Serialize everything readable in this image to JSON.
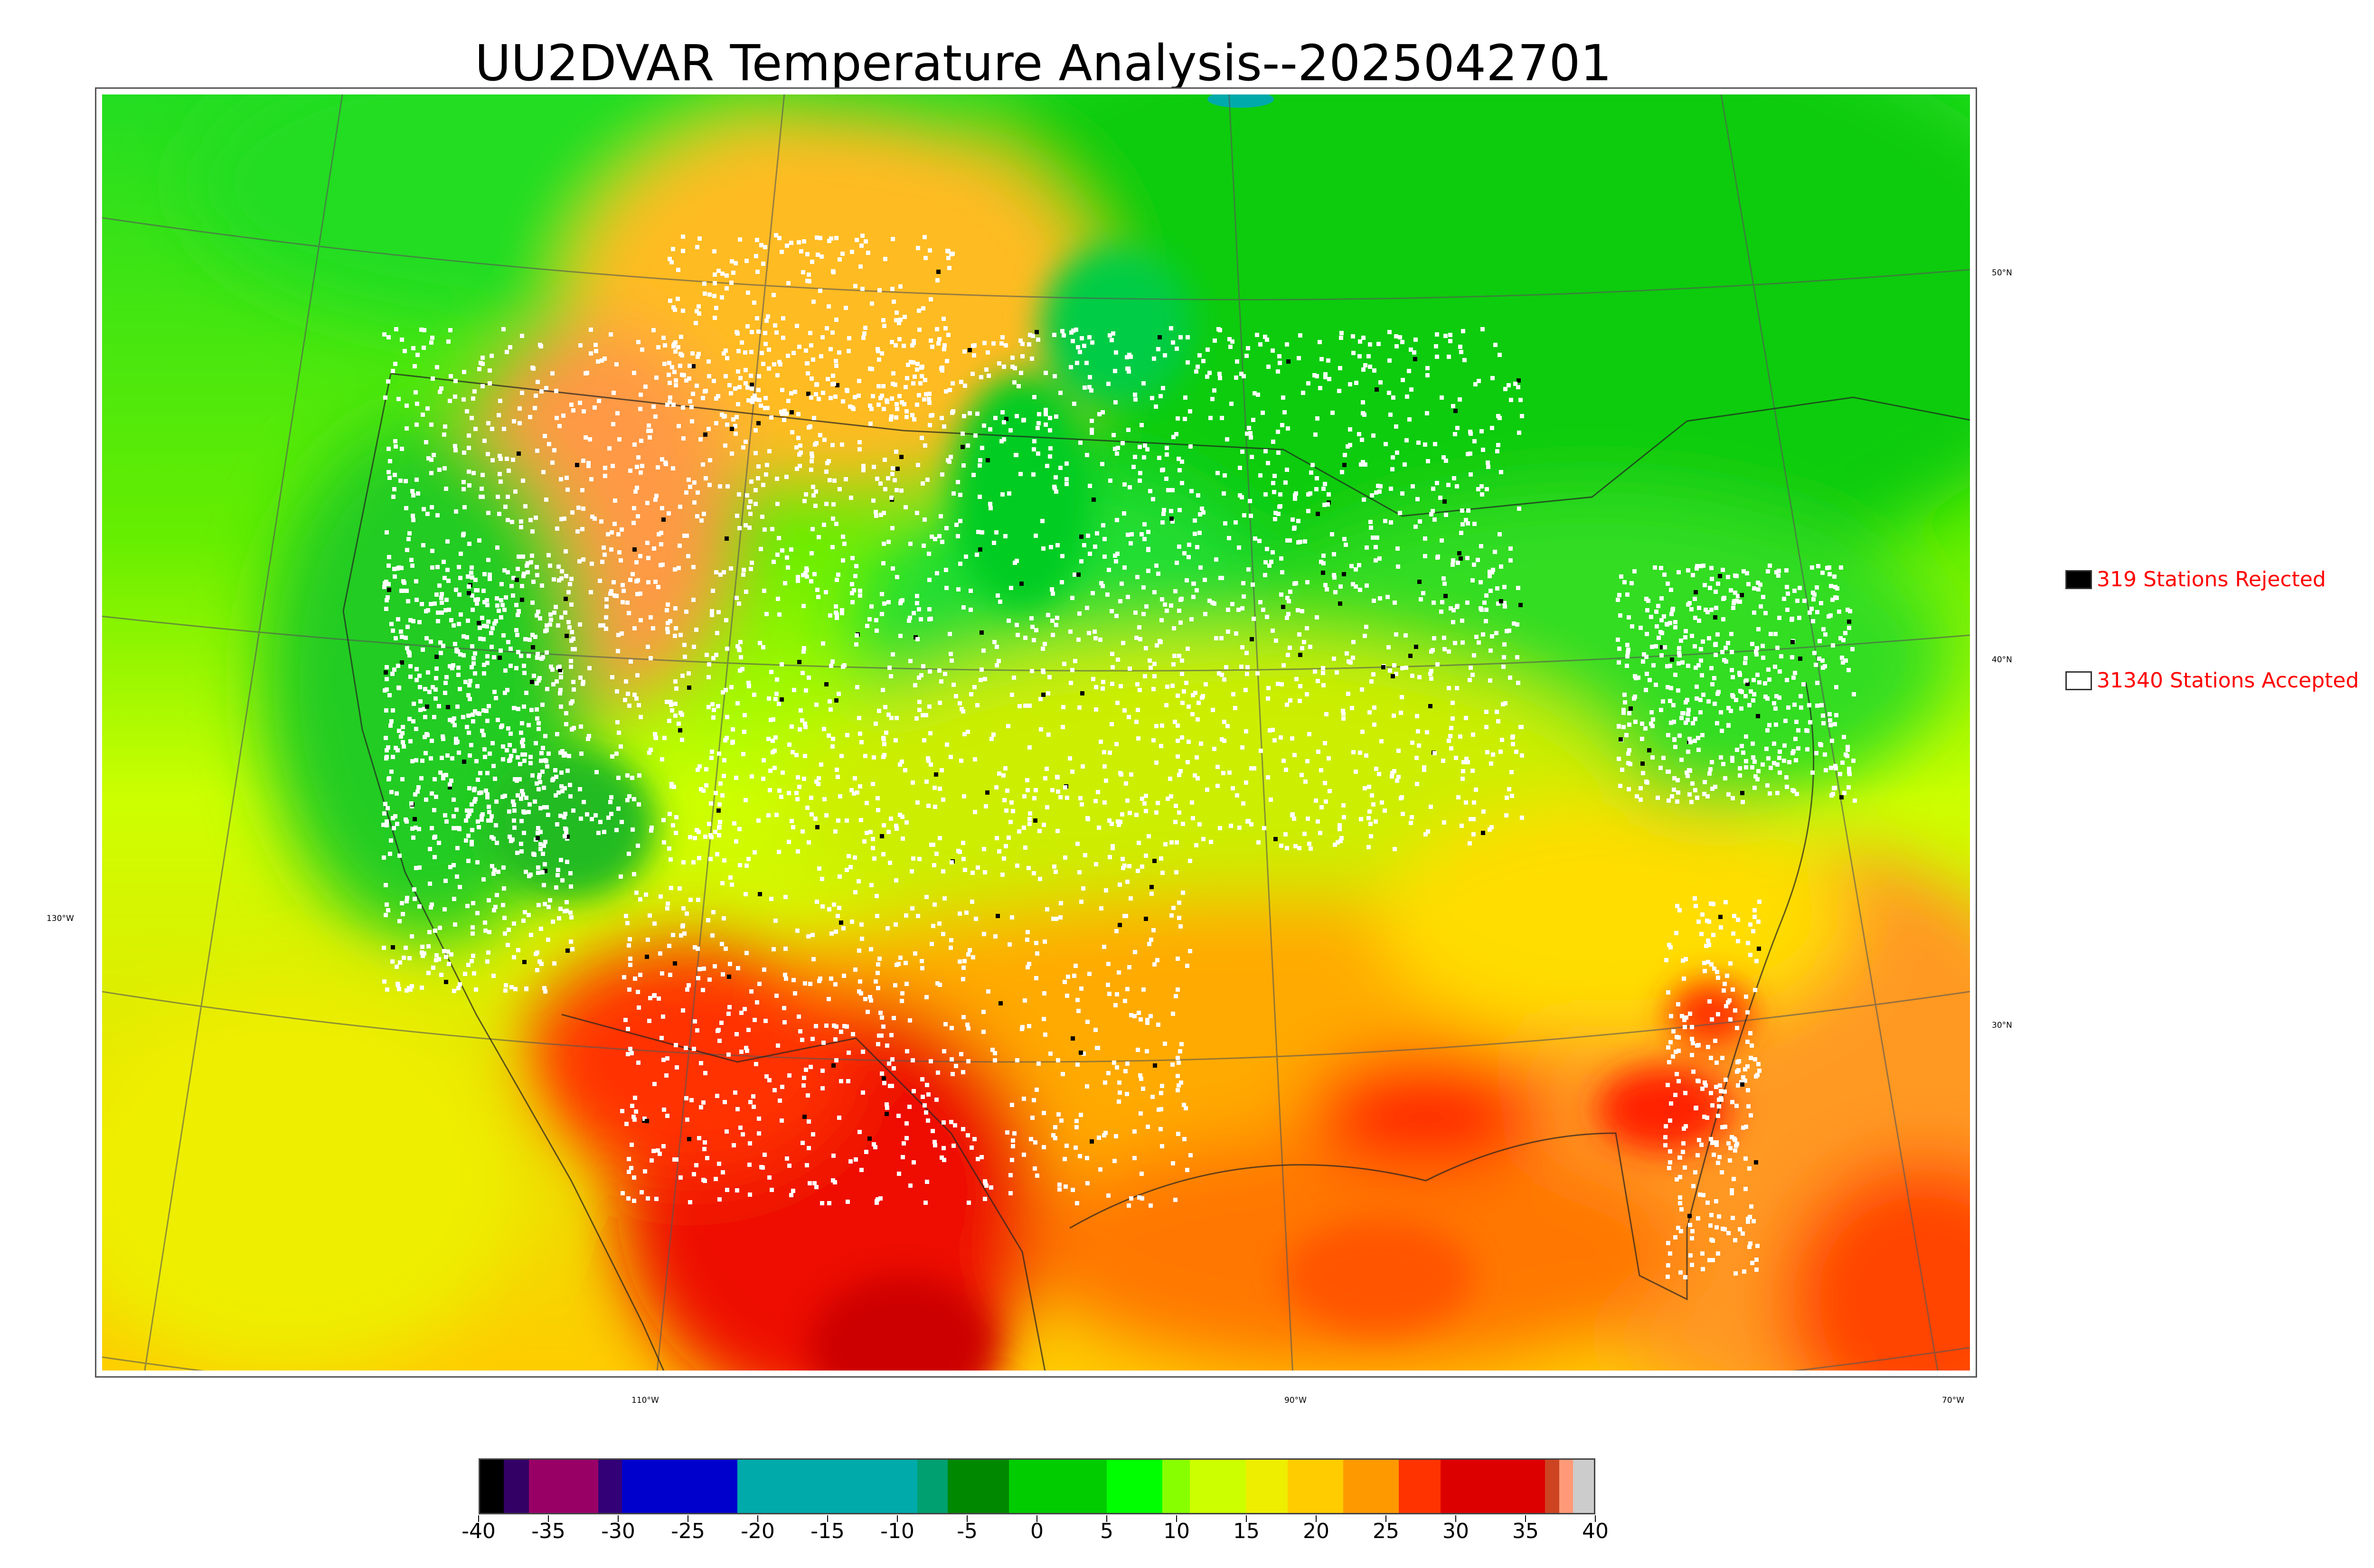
{
  "title": "UU2DVAR Temperature Analysis--2025042701",
  "map": {
    "lat_labels": [
      "50°N",
      "40°N",
      "30°N"
    ],
    "lon_labels": [
      "130°W",
      "110°W",
      "90°W",
      "70°W"
    ],
    "colors": {
      "cold": "#00c000",
      "cool": "#33e61a",
      "mild": "#c8ff00",
      "warm": "#ffd000",
      "hot": "#ff8c00",
      "very_hot": "#ff2000",
      "station_accepted": "#ffffff",
      "station_rejected": "#000000"
    }
  },
  "legend": {
    "rejected": {
      "label": "319 Stations Rejected",
      "color": "#000000"
    },
    "accepted": {
      "label": "31340 Stations Accepted",
      "color": "#ffffff"
    }
  },
  "colorbar": {
    "ticks": [
      "-40",
      "-35",
      "-30",
      "-25",
      "-20",
      "-15",
      "-10",
      "-5",
      "0",
      "5",
      "10",
      "15",
      "20",
      "25",
      "30",
      "35",
      "40"
    ],
    "range": [
      -40,
      40
    ],
    "segments": [
      {
        "from": -40,
        "to": -38.3,
        "color": "#000000"
      },
      {
        "from": -38.3,
        "to": -36.5,
        "color": "#330066"
      },
      {
        "from": -36.5,
        "to": -31.5,
        "color": "#990066"
      },
      {
        "from": -31.5,
        "to": -29.8,
        "color": "#330077"
      },
      {
        "from": -29.8,
        "to": -21.5,
        "color": "#0000cc"
      },
      {
        "from": -21.5,
        "to": -8.6,
        "color": "#00aaaa"
      },
      {
        "from": -8.6,
        "to": -6.4,
        "color": "#00a070"
      },
      {
        "from": -6.4,
        "to": -2,
        "color": "#008800"
      },
      {
        "from": -2,
        "to": 5,
        "color": "#00cc00"
      },
      {
        "from": 5,
        "to": 9,
        "color": "#00ff00"
      },
      {
        "from": 9,
        "to": 11,
        "color": "#88ff00"
      },
      {
        "from": 11,
        "to": 15,
        "color": "#ccff00"
      },
      {
        "from": 15,
        "to": 18,
        "color": "#eeee00"
      },
      {
        "from": 18,
        "to": 22,
        "color": "#ffcc00"
      },
      {
        "from": 22,
        "to": 26,
        "color": "#ff9900"
      },
      {
        "from": 26,
        "to": 29,
        "color": "#ff3300"
      },
      {
        "from": 29,
        "to": 36.5,
        "color": "#dd0000"
      },
      {
        "from": 36.5,
        "to": 37.5,
        "color": "#cc4422"
      },
      {
        "from": 37.5,
        "to": 38.5,
        "color": "#ff9977"
      },
      {
        "from": 38.5,
        "to": 40,
        "color": "#cccccc"
      }
    ]
  }
}
